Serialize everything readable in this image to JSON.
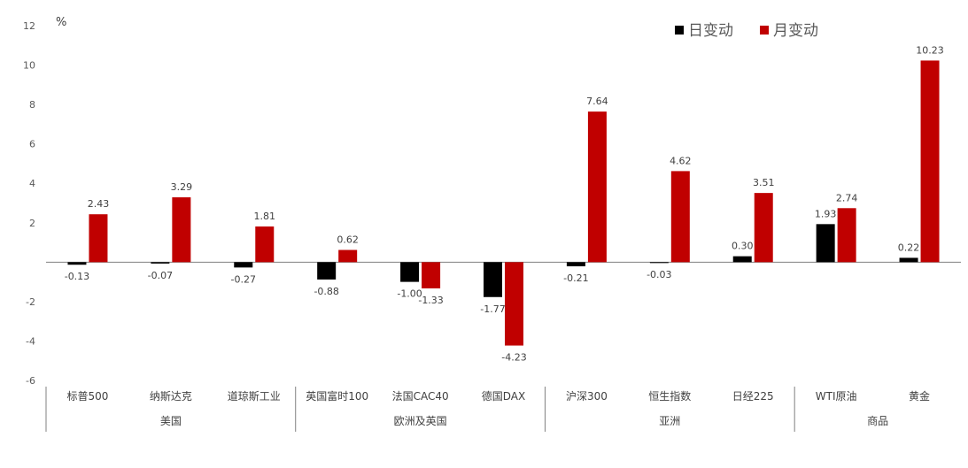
{
  "chart_data": {
    "type": "bar",
    "unit": "%",
    "ylim": [
      -6,
      12
    ],
    "yticks": [
      "-6",
      "-4",
      "-2",
      "",
      "2",
      "4",
      "6",
      "8",
      "10",
      "12"
    ],
    "grid": false,
    "legend_position": "top-right",
    "categories": [
      "标普500",
      "纳斯达克",
      "道琼斯工业",
      "英国富时100",
      "法国CAC40",
      "德国DAX",
      "沪深300",
      "恒生指数",
      "日经225",
      "WTI原油",
      "黄金"
    ],
    "groups": [
      {
        "label": "美国",
        "count": 3
      },
      {
        "label": "欧洲及英国",
        "count": 3
      },
      {
        "label": "亚洲",
        "count": 3
      },
      {
        "label": "商品",
        "count": 2
      }
    ],
    "series": [
      {
        "name": "日变动",
        "color": "#000000",
        "values": [
          -0.13,
          -0.07,
          -0.27,
          -0.88,
          -1.0,
          -1.77,
          -0.21,
          -0.03,
          0.3,
          1.93,
          0.22
        ],
        "labels": [
          "-0.13",
          "-0.07",
          "-0.27",
          "-0.88",
          "-1.00",
          "-1.77",
          "-0.21",
          "-0.03",
          "0.30",
          "1.93",
          "0.22"
        ]
      },
      {
        "name": "月变动",
        "color": "#c00000",
        "values": [
          2.43,
          3.29,
          1.81,
          0.62,
          -1.33,
          -4.23,
          7.64,
          4.62,
          3.51,
          2.74,
          10.23
        ],
        "labels": [
          "2.43",
          "3.29",
          "1.81",
          "0.62",
          "-1.33",
          "-4.23",
          "7.64",
          "4.62",
          "3.51",
          "2.74",
          "10.23"
        ]
      }
    ]
  }
}
